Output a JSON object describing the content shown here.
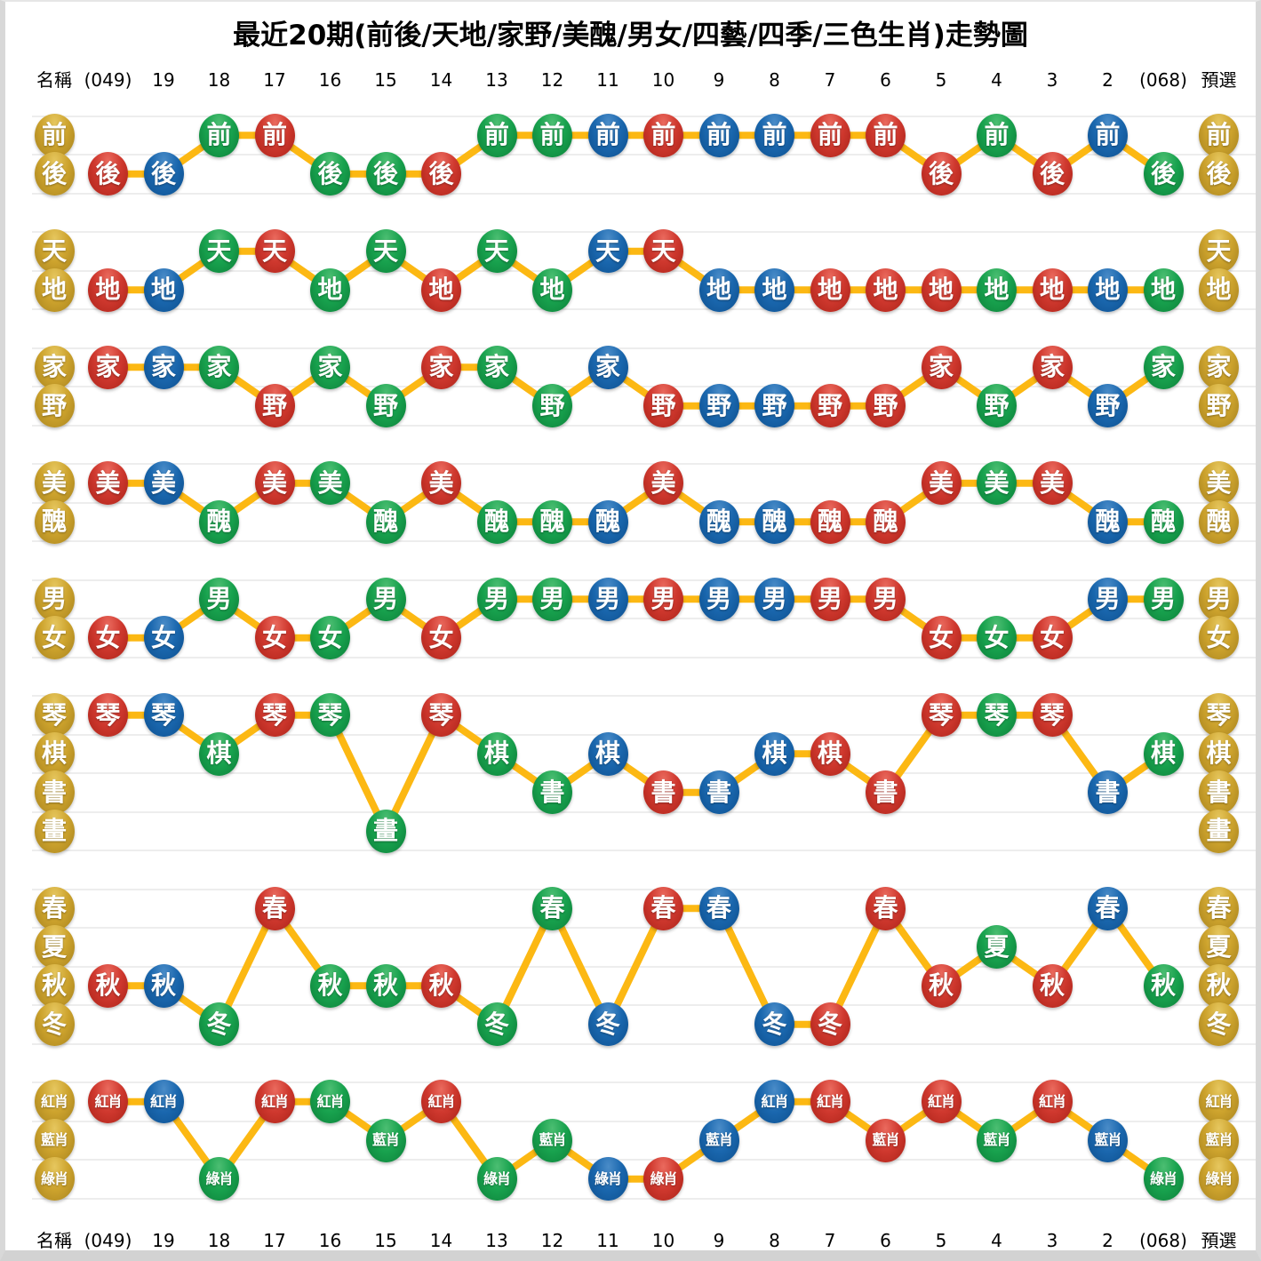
{
  "title": "最近20期(前後/天地/家野/美醜/男女/四藝/四季/三色生肖)走勢圖",
  "header": {
    "name_label": "名稱",
    "preselect_label": "預選"
  },
  "colors": {
    "red": "#CF382E",
    "blue": "#1A67AE",
    "green": "#18A24E",
    "gold": "#CDA32D",
    "line": "#FCB813",
    "grid": "#EDEDED"
  },
  "chart_data": {
    "type": "line",
    "title": "最近20期(前後/天地/家野/美醜/男女/四藝/四季/三色生肖)走勢圖",
    "grid": true,
    "legend_position": "none",
    "categories": [
      "(049)",
      "19",
      "18",
      "17",
      "16",
      "15",
      "14",
      "13",
      "12",
      "11",
      "10",
      "9",
      "8",
      "7",
      "6",
      "5",
      "4",
      "3",
      "2",
      "(068)"
    ],
    "ball_colors": [
      "red",
      "blue",
      "green",
      "red",
      "green",
      "green",
      "red",
      "green",
      "green",
      "blue",
      "red",
      "blue",
      "blue",
      "red",
      "red",
      "red",
      "green",
      "red",
      "blue",
      "green"
    ],
    "sections": [
      {
        "name": "前後",
        "rows": [
          "前",
          "後"
        ],
        "values": [
          "後",
          "後",
          "前",
          "前",
          "後",
          "後",
          "後",
          "前",
          "前",
          "前",
          "前",
          "前",
          "前",
          "前",
          "前",
          "後",
          "前",
          "後",
          "前",
          "後"
        ]
      },
      {
        "name": "天地",
        "rows": [
          "天",
          "地"
        ],
        "values": [
          "地",
          "地",
          "天",
          "天",
          "地",
          "天",
          "地",
          "天",
          "地",
          "天",
          "天",
          "地",
          "地",
          "地",
          "地",
          "地",
          "地",
          "地",
          "地",
          "地"
        ]
      },
      {
        "name": "家野",
        "rows": [
          "家",
          "野"
        ],
        "values": [
          "家",
          "家",
          "家",
          "野",
          "家",
          "野",
          "家",
          "家",
          "野",
          "家",
          "野",
          "野",
          "野",
          "野",
          "野",
          "家",
          "野",
          "家",
          "野",
          "家"
        ]
      },
      {
        "name": "美醜",
        "rows": [
          "美",
          "醜"
        ],
        "values": [
          "美",
          "美",
          "醜",
          "美",
          "美",
          "醜",
          "美",
          "醜",
          "醜",
          "醜",
          "美",
          "醜",
          "醜",
          "醜",
          "醜",
          "美",
          "美",
          "美",
          "醜",
          "醜"
        ]
      },
      {
        "name": "男女",
        "rows": [
          "男",
          "女"
        ],
        "values": [
          "女",
          "女",
          "男",
          "女",
          "女",
          "男",
          "女",
          "男",
          "男",
          "男",
          "男",
          "男",
          "男",
          "男",
          "男",
          "女",
          "女",
          "女",
          "男",
          "男"
        ]
      },
      {
        "name": "四藝",
        "rows": [
          "琴",
          "棋",
          "書",
          "畫"
        ],
        "values": [
          "琴",
          "琴",
          "棋",
          "琴",
          "琴",
          "畫",
          "琴",
          "棋",
          "書",
          "棋",
          "書",
          "書",
          "棋",
          "棋",
          "書",
          "琴",
          "琴",
          "琴",
          "書",
          "棋"
        ]
      },
      {
        "name": "四季",
        "rows": [
          "春",
          "夏",
          "秋",
          "冬"
        ],
        "values": [
          "秋",
          "秋",
          "冬",
          "春",
          "秋",
          "秋",
          "秋",
          "冬",
          "春",
          "冬",
          "春",
          "春",
          "冬",
          "冬",
          "春",
          "秋",
          "夏",
          "秋",
          "春",
          "秋"
        ]
      },
      {
        "name": "三色生肖",
        "rows": [
          "紅肖",
          "藍肖",
          "綠肖"
        ],
        "values": [
          "紅肖",
          "紅肖",
          "綠肖",
          "紅肖",
          "紅肖",
          "藍肖",
          "紅肖",
          "綠肖",
          "藍肖",
          "綠肖",
          "綠肖",
          "藍肖",
          "紅肖",
          "紅肖",
          "藍肖",
          "紅肖",
          "藍肖",
          "紅肖",
          "藍肖",
          "綠肖"
        ]
      }
    ]
  }
}
